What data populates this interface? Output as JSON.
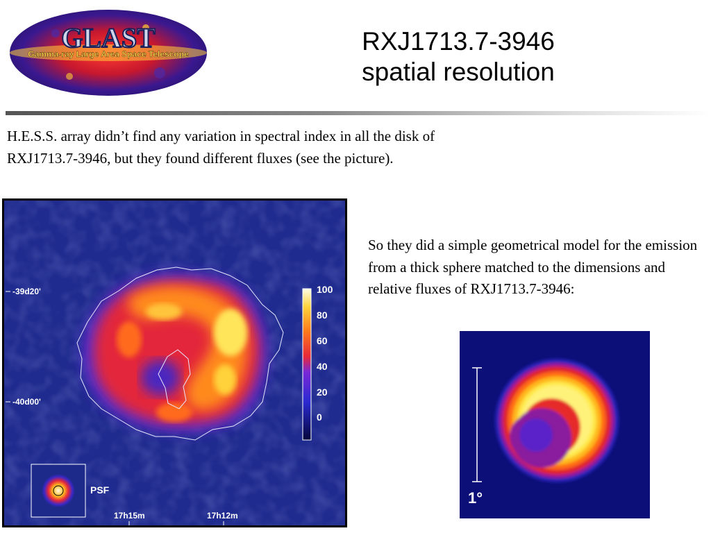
{
  "slide": {
    "title_line1": "RXJ1713.7-3946",
    "title_line2": "spatial resolution",
    "paragraph1": "H.E.S.S. array didn’t find any variation in spectral index in all the disk of RXJ1713.7-3946, but they found different fluxes (see the picture).",
    "paragraph2": "So they did a simple geometrical model for the emission from a thick sphere matched to the dimensions and relative fluxes of RXJ1713.7-3946:"
  },
  "logo": {
    "name": "GLAST",
    "subtitle": "Gamma-ray Large Area Space Telescope",
    "icon": "glast-logo"
  },
  "hess_map": {
    "dec_labels": [
      "-39d20'",
      "-40d00'"
    ],
    "ra_labels": [
      "17h15m",
      "17h12m"
    ],
    "colorbar_ticks": [
      "100",
      "80",
      "60",
      "40",
      "20",
      "0"
    ],
    "psf_label": "PSF",
    "colors": {
      "background": "#1a237a",
      "mid": "#e2322a",
      "high": "#ffe680",
      "peak": "#ffffff"
    }
  },
  "model_map": {
    "scale_label": "1°",
    "colors": {
      "background": "#0c0f78",
      "ring": "#ffee55",
      "inner": "#5c1ec8"
    }
  }
}
